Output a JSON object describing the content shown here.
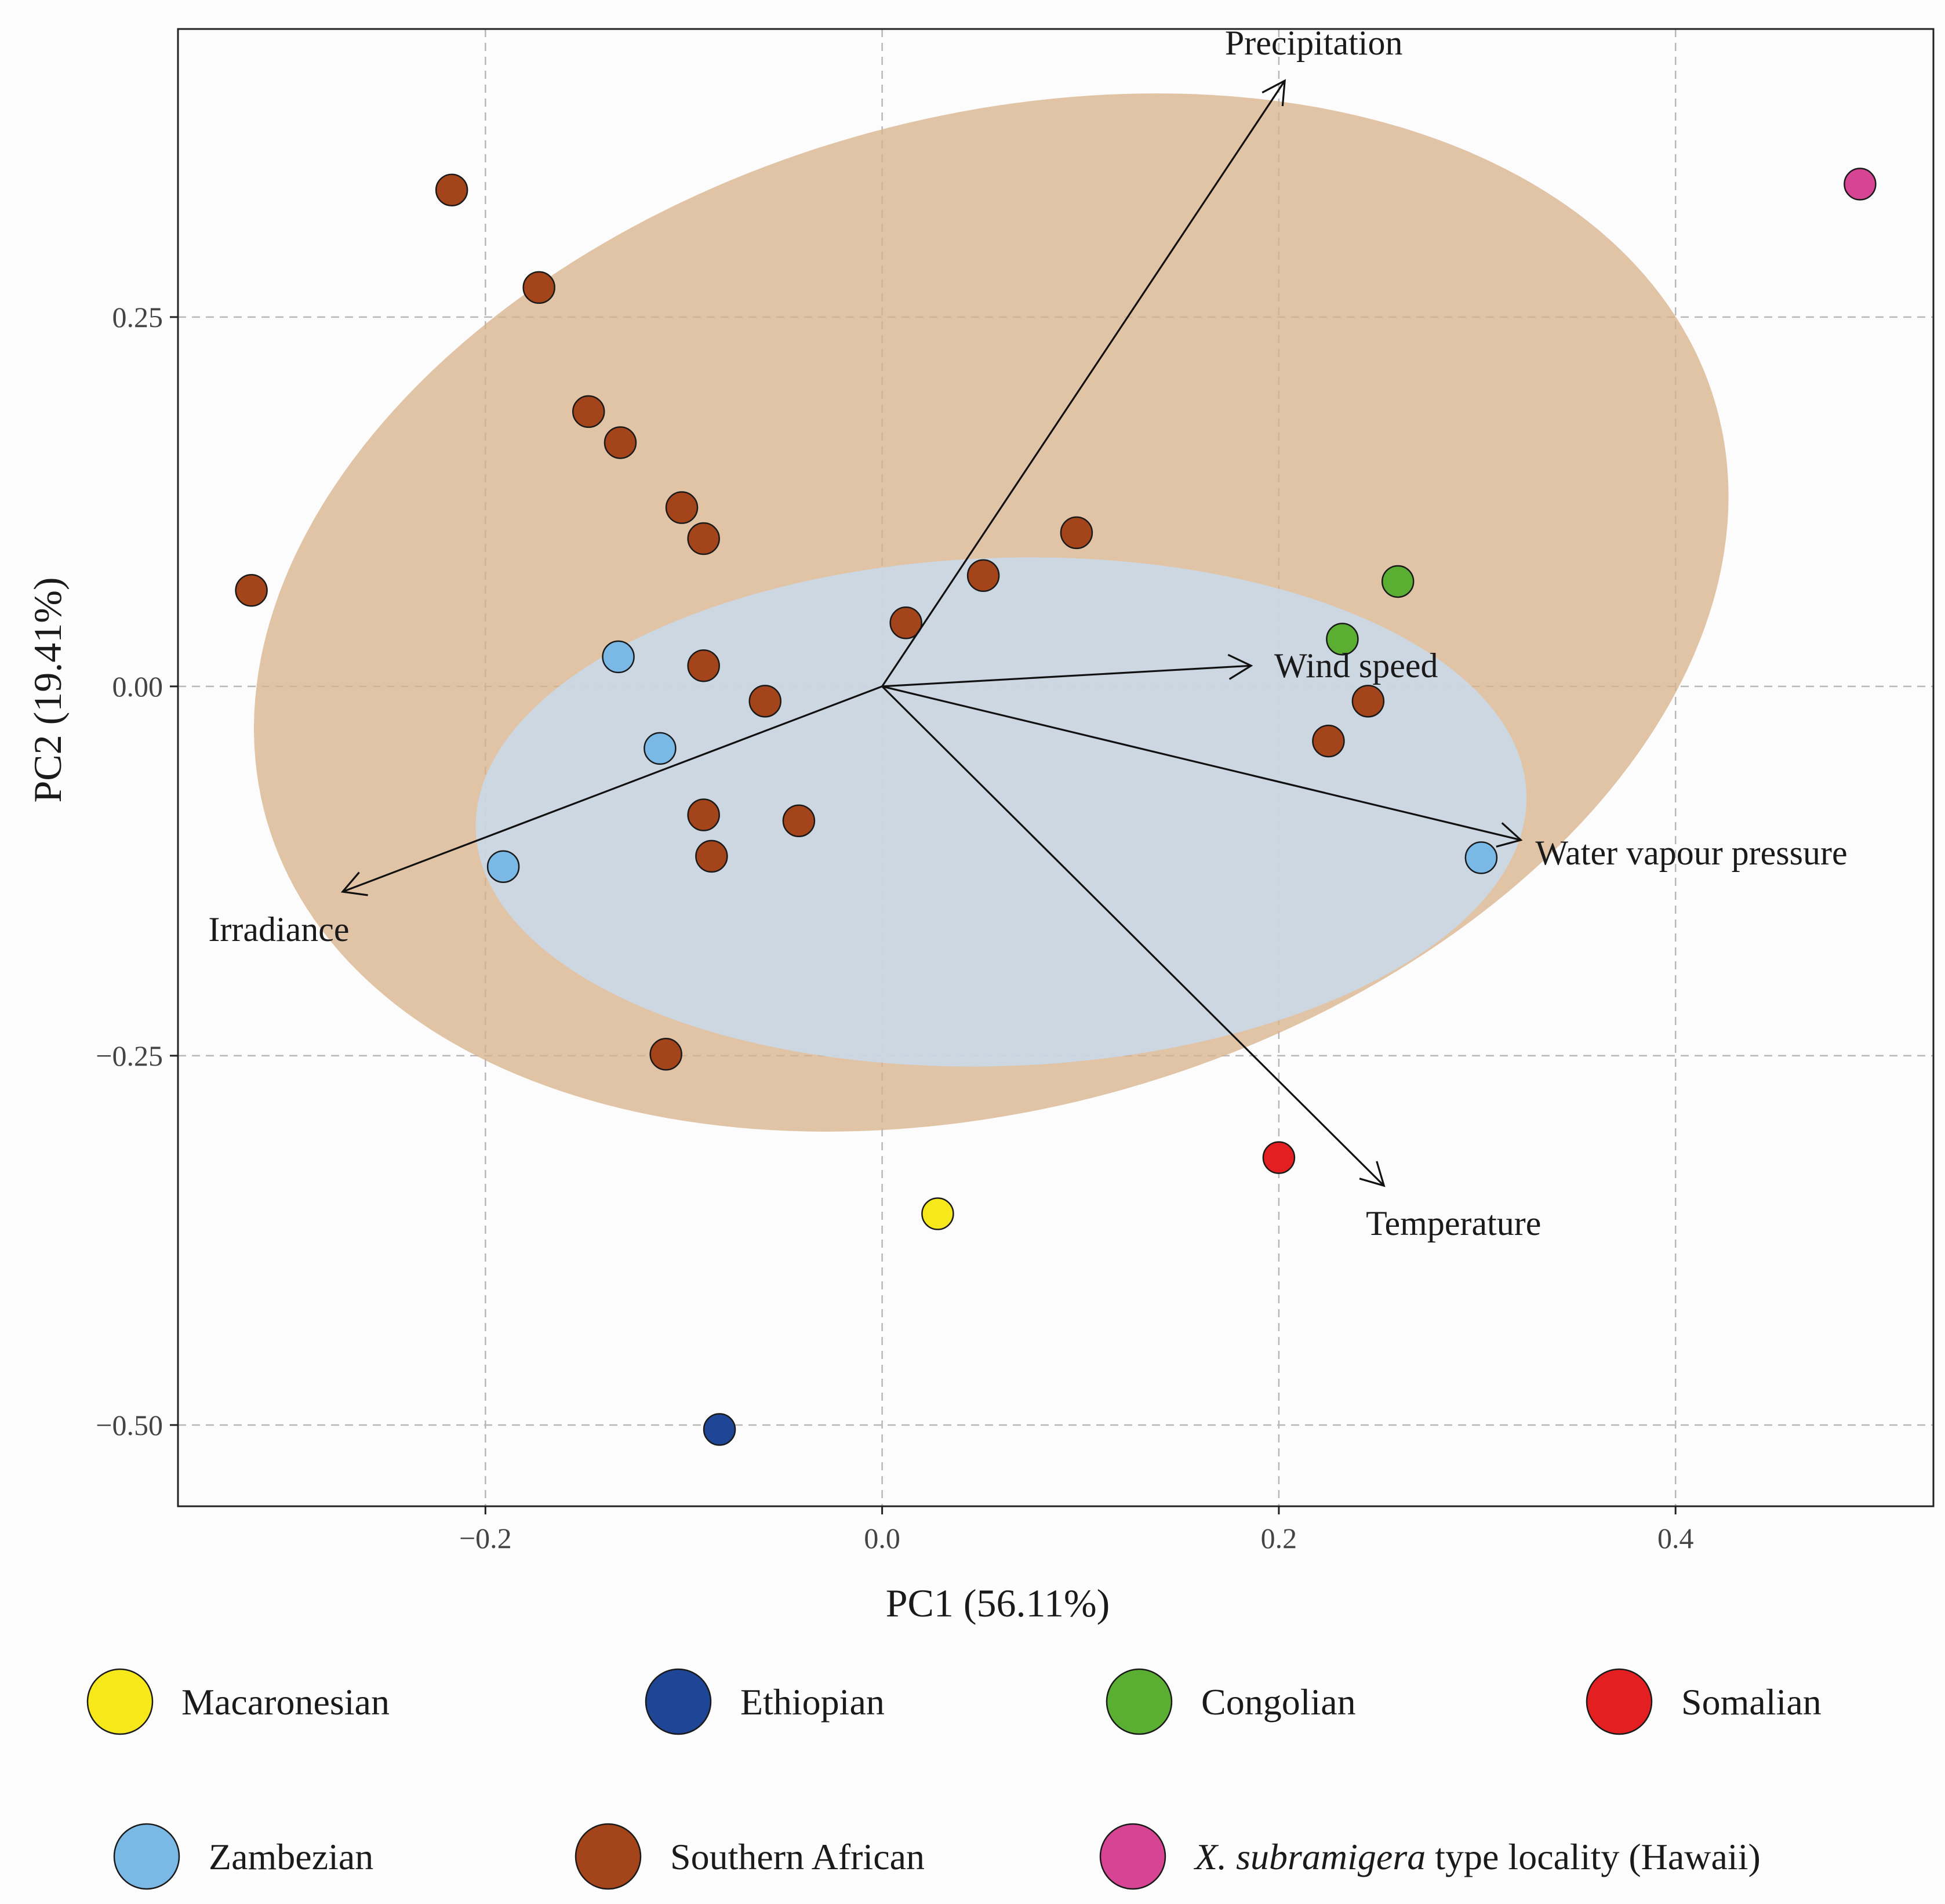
{
  "chart_data": {
    "type": "scatter",
    "subtype": "PCA biplot",
    "title": "",
    "xlabel": "PC1 (56.11%)",
    "ylabel": "PC2 (19.41%)",
    "xlim": [
      -0.355,
      0.53
    ],
    "ylim": [
      -0.555,
      0.445
    ],
    "x_ticks": [
      -0.2,
      0.0,
      0.2,
      0.4
    ],
    "x_tick_labels": [
      "−0.2",
      "0.0",
      "0.2",
      "0.4"
    ],
    "y_ticks": [
      -0.5,
      -0.25,
      0.0,
      0.25
    ],
    "y_tick_labels": [
      "−0.50",
      "−0.25",
      "0.00",
      "0.25"
    ],
    "grid": true,
    "groups": [
      {
        "name": "Macaronesian",
        "color": "#f7e81b"
      },
      {
        "name": "Ethiopian",
        "color": "#1f4696"
      },
      {
        "name": "Congolian",
        "color": "#5aae32"
      },
      {
        "name": "Somalian",
        "color": "#e41f22"
      },
      {
        "name": "Zambezian",
        "color": "#7ab8e6"
      },
      {
        "name": "Southern African",
        "color": "#a4441b"
      },
      {
        "name": "X. subramigera type locality (Hawaii)",
        "color": "#d84494",
        "label_italic": "X. subramigera",
        "label_rest": " type locality (Hawaii)"
      }
    ],
    "ellipses": [
      {
        "group": "Southern African",
        "cx": 0.055,
        "cy": 0.05,
        "rx": 0.38,
        "ry": 0.335,
        "angle_deg": -16,
        "color": "#d9b38c"
      },
      {
        "group": "Zambezian",
        "cx": 0.06,
        "cy": -0.085,
        "rx": 0.265,
        "ry": 0.172,
        "angle_deg": -2,
        "color": "#c5ddf3"
      }
    ],
    "points": [
      {
        "group": "Southern African",
        "x": -0.217,
        "y": 0.336
      },
      {
        "group": "Southern African",
        "x": -0.173,
        "y": 0.27
      },
      {
        "group": "Southern African",
        "x": -0.148,
        "y": 0.186
      },
      {
        "group": "Southern African",
        "x": -0.132,
        "y": 0.165
      },
      {
        "group": "Southern African",
        "x": -0.101,
        "y": 0.121
      },
      {
        "group": "Southern African",
        "x": -0.09,
        "y": 0.1
      },
      {
        "group": "Southern African",
        "x": -0.318,
        "y": 0.065
      },
      {
        "group": "Southern African",
        "x": 0.098,
        "y": 0.104
      },
      {
        "group": "Southern African",
        "x": 0.051,
        "y": 0.075
      },
      {
        "group": "Southern African",
        "x": 0.012,
        "y": 0.043
      },
      {
        "group": "Southern African",
        "x": -0.09,
        "y": 0.014
      },
      {
        "group": "Southern African",
        "x": -0.059,
        "y": -0.01
      },
      {
        "group": "Southern African",
        "x": 0.245,
        "y": -0.01
      },
      {
        "group": "Southern African",
        "x": 0.225,
        "y": -0.037
      },
      {
        "group": "Southern African",
        "x": -0.09,
        "y": -0.087
      },
      {
        "group": "Southern African",
        "x": -0.042,
        "y": -0.091
      },
      {
        "group": "Southern African",
        "x": -0.086,
        "y": -0.115
      },
      {
        "group": "Southern African",
        "x": -0.109,
        "y": -0.249
      },
      {
        "group": "Zambezian",
        "x": -0.133,
        "y": 0.02
      },
      {
        "group": "Zambezian",
        "x": -0.112,
        "y": -0.042
      },
      {
        "group": "Zambezian",
        "x": -0.191,
        "y": -0.122
      },
      {
        "group": "Zambezian",
        "x": 0.302,
        "y": -0.116
      },
      {
        "group": "Congolian",
        "x": 0.26,
        "y": 0.071
      },
      {
        "group": "Congolian",
        "x": 0.232,
        "y": 0.032
      },
      {
        "group": "Somalian",
        "x": 0.2,
        "y": -0.319
      },
      {
        "group": "Macaronesian",
        "x": 0.028,
        "y": -0.357
      },
      {
        "group": "Ethiopian",
        "x": -0.082,
        "y": -0.503
      },
      {
        "group": "X. subramigera type locality (Hawaii)",
        "x": 0.493,
        "y": 0.34
      }
    ],
    "vectors": [
      {
        "label": "Precipitation",
        "x": 0.203,
        "y": 0.41
      },
      {
        "label": "Wind speed",
        "x": 0.186,
        "y": 0.014
      },
      {
        "label": "Water vapour pressure",
        "x": 0.322,
        "y": -0.104
      },
      {
        "label": "Temperature",
        "x": 0.253,
        "y": -0.338
      },
      {
        "label": "Irradiance",
        "x": -0.272,
        "y": -0.139
      }
    ]
  }
}
